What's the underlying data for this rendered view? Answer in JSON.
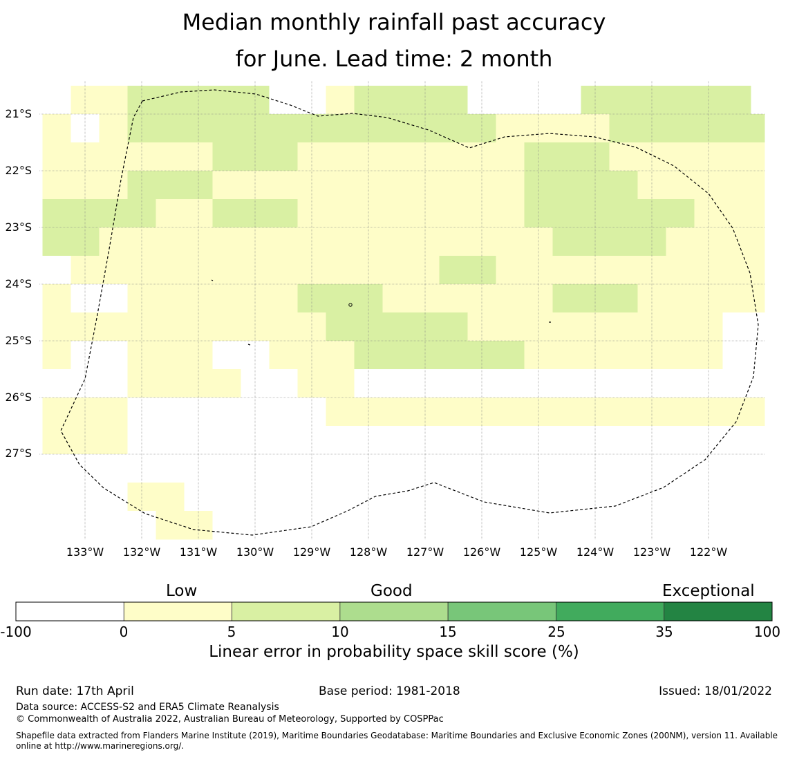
{
  "title": {
    "line1": "Median monthly rainfall past accuracy",
    "line2": "for June. Lead time: 2 month"
  },
  "map": {
    "lat_labels": [
      "21°S",
      "22°S",
      "23°S",
      "24°S",
      "25°S",
      "26°S",
      "27°S"
    ],
    "lon_labels": [
      "133°W",
      "132°W",
      "131°W",
      "130°W",
      "129°W",
      "128°W",
      "127°W",
      "126°W",
      "125°W",
      "124°W",
      "123°W",
      "122°W"
    ],
    "grid": {
      "lon_start": -133.75,
      "lat_start": -20.5,
      "cell_deg": 0.5,
      "legend": "0 = below 0 (white), 1 = 0–5, 2 = 5–10",
      "rows": [
        "011222220012222000022222200",
        "101222222222222211112222221",
        "111111222111111112221111111",
        "111222111111111112222111111",
        "222211222111111112222221111",
        "221111111111111111222211112",
        "011111111111112211111111111",
        "100111111222111111222111111",
        "111111111122222111111111001",
        "100111001112222221111111001",
        "000111100110000000000000000",
        "111000000011111111111111110",
        "111000000000000000000000000",
        "000000000000000000000000000",
        "000110000000000000000000000",
        "000011000000000000000000000",
        "000000000000000000000000000",
        "000000000000000000000000000",
        "000000000000000000000000000"
      ]
    },
    "colors": {
      "below_zero": "#ffffff",
      "c0_5": "#fefdc8",
      "c5_10": "#d9f0a3",
      "c10_15": "#addd8e",
      "c15_25": "#78c679",
      "c25_35": "#41ab5d",
      "c35_100": "#238443"
    }
  },
  "colorbar": {
    "categories": [
      "Low",
      "Good",
      "Exceptional"
    ],
    "ticks": [
      "-100",
      "0",
      "5",
      "10",
      "15",
      "25",
      "35",
      "100"
    ],
    "title": "Linear error in probability space skill score (%)"
  },
  "footer": {
    "run_date": "Run date: 17th April",
    "base_period": "Base period: 1981-2018",
    "issued": "Issued: 18/01/2022",
    "data_source": "Data source: ACCESS-S2 and ERA5 Climate Reanalysis",
    "copyright": "© Commonwealth of Australia 2022, Australian Bureau of Meteorology, Supported by COSPPac",
    "shapefile": "Shapefile data extracted from Flanders Marine Institute (2019), Maritime Boundaries Geodatabase: Maritime Boundaries and Exclusive Economic Zones (200NM), version 11. Available online at http://www.marineregions.org/."
  }
}
